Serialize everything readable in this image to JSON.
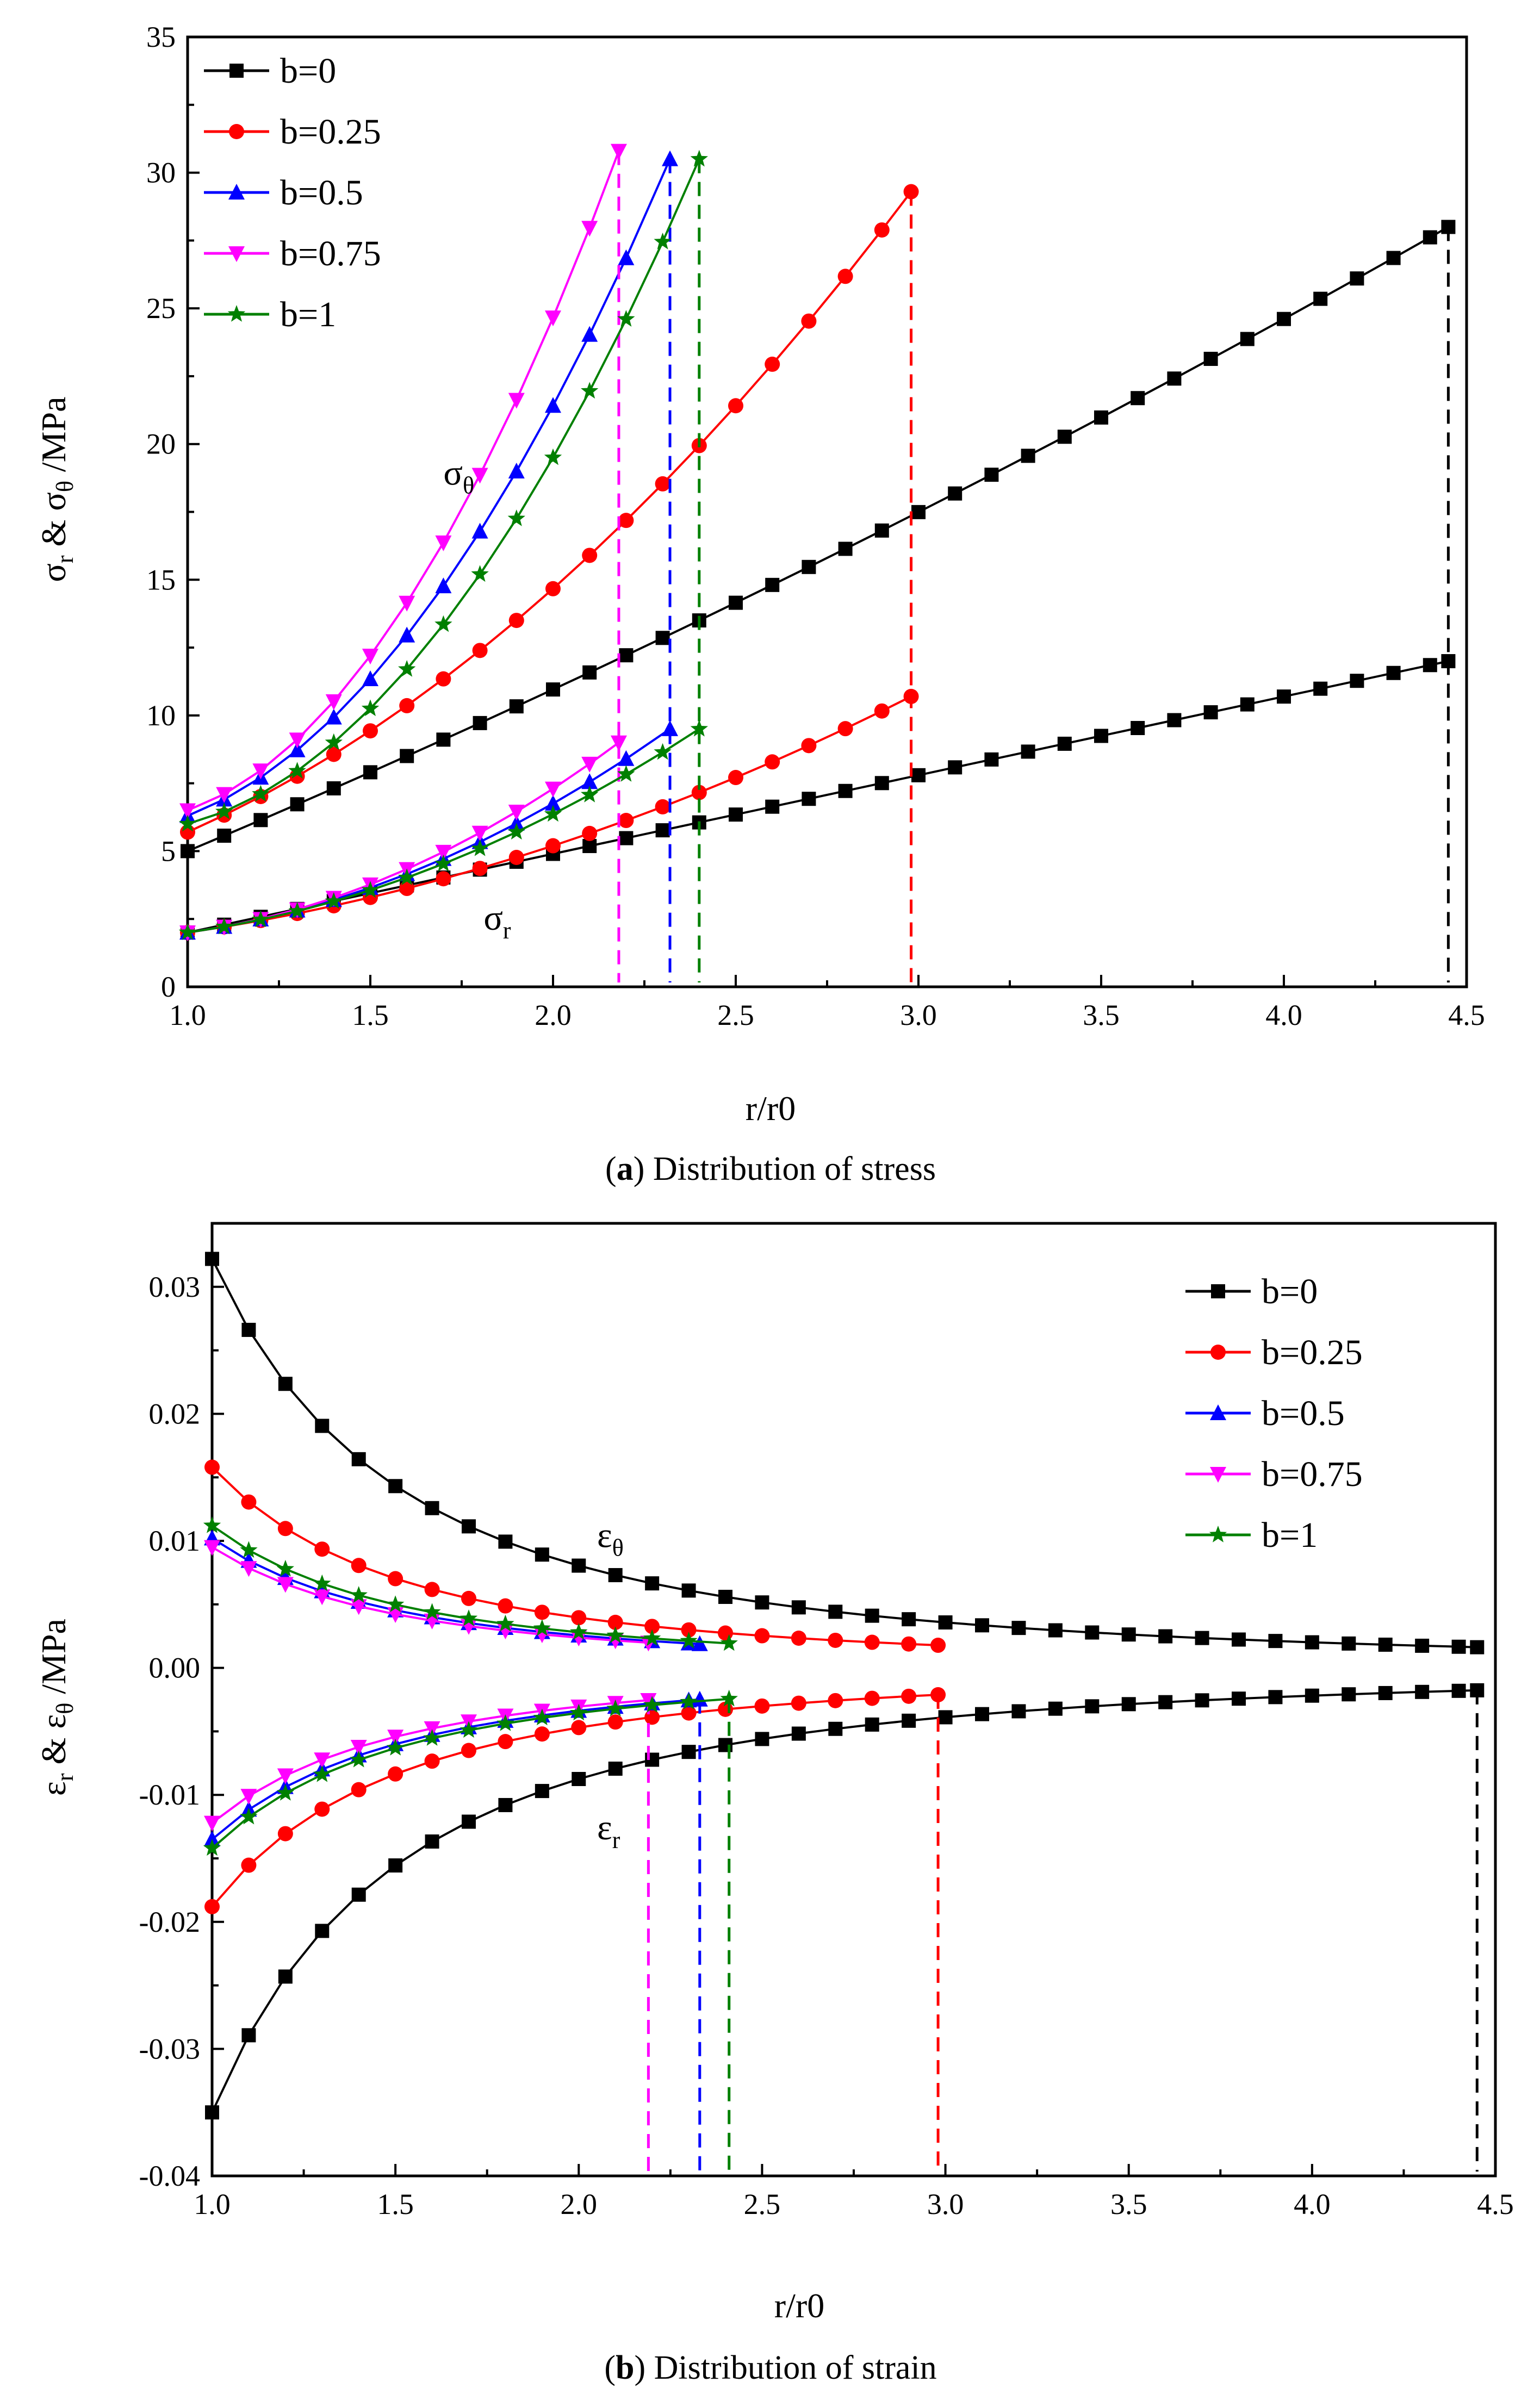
{
  "chart_data": [
    {
      "panel": "a",
      "type": "line",
      "caption_prefix": "(",
      "caption_letter": "a",
      "caption_rest": ") Distribution of stress",
      "xlabel": "r/r0",
      "ylabel": {
        "p1": "σ",
        "s1": "r",
        "p2": " & σ",
        "s2": "θ",
        "p3": " /MPa"
      },
      "xlim": [
        1.0,
        4.5
      ],
      "ylim": [
        0,
        35
      ],
      "xticks": [
        1.0,
        1.5,
        2.0,
        2.5,
        3.0,
        3.5,
        4.0,
        4.5
      ],
      "xtick_labels": [
        "1.0",
        "1.5",
        "2.0",
        "2.5",
        "3.0",
        "3.5",
        "4.0",
        "4.5"
      ],
      "yticks": [
        0,
        5,
        10,
        15,
        20,
        25,
        30,
        35
      ],
      "ytick_labels": [
        "0",
        "5",
        "10",
        "15",
        "20",
        "25",
        "30",
        "35"
      ],
      "legend_position": "top-left",
      "annotations": [
        {
          "main": "σ",
          "sub": "θ",
          "x": 1.7,
          "y": 18.5
        },
        {
          "main": "σ",
          "sub": "r",
          "x": 1.81,
          "y": 2.1
        }
      ],
      "series": [
        {
          "name": "b=0",
          "color": "#000000",
          "marker": "square",
          "x_end": 4.45,
          "theta_start": 5.0,
          "theta_end": 28.0,
          "theta_curv": 0.3,
          "r_start": 2.0,
          "r_end": 12.0,
          "r_curv": 0.0
        },
        {
          "name": "b=0.25",
          "color": "#ff0000",
          "marker": "circle",
          "x_end": 2.98,
          "theta_start": 5.7,
          "theta_end": 29.3,
          "theta_curv": 1.0,
          "r_start": 2.0,
          "r_end": 10.7,
          "r_curv": 1.1
        },
        {
          "name": "b=0.5",
          "color": "#0000ff",
          "marker": "triangle-up",
          "x_end": 2.32,
          "theta_start": 6.3,
          "theta_end": 30.5,
          "theta_curv": 1.45,
          "r_start": 2.0,
          "r_end": 9.5,
          "r_curv": 1.35
        },
        {
          "name": "b=0.75",
          "color": "#ff00ff",
          "marker": "triangle-down",
          "x_end": 2.18,
          "theta_start": 6.5,
          "theta_end": 30.8,
          "theta_curv": 1.55,
          "r_start": 2.0,
          "r_end": 9.0,
          "r_curv": 1.4
        },
        {
          "name": "b=1",
          "color": "#008000",
          "marker": "star",
          "x_end": 2.4,
          "theta_start": 6.0,
          "theta_end": 30.5,
          "theta_curv": 1.6,
          "r_start": 2.0,
          "r_end": 9.5,
          "r_curv": 1.3
        }
      ]
    },
    {
      "panel": "b",
      "type": "line",
      "caption_prefix": "(",
      "caption_letter": "b",
      "caption_rest": ") Distribution of strain",
      "xlabel": "r/r0",
      "ylabel": {
        "p1": "ε",
        "s1": "r",
        "p2": " & ε",
        "s2": "θ",
        "p3": " /MPa"
      },
      "xlim": [
        1.0,
        4.5
      ],
      "ylim": [
        -0.04,
        0.035
      ],
      "xticks": [
        1.0,
        1.5,
        2.0,
        2.5,
        3.0,
        3.5,
        4.0,
        4.5
      ],
      "xtick_labels": [
        "1.0",
        "1.5",
        "2.0",
        "2.5",
        "3.0",
        "3.5",
        "4.0",
        "4.5"
      ],
      "yticks": [
        -0.04,
        -0.03,
        -0.02,
        -0.01,
        0.0,
        0.01,
        0.02,
        0.03
      ],
      "ytick_labels": [
        "-0.04",
        "-0.03",
        "-0.02",
        "-0.01",
        "0.00",
        "0.01",
        "0.02",
        "0.03"
      ],
      "legend_position": "top-right",
      "annotations": [
        {
          "main": "ε",
          "sub": "θ",
          "x": 2.05,
          "y": 0.0095
        },
        {
          "main": "ε",
          "sub": "r",
          "x": 2.05,
          "y": -0.0135
        }
      ],
      "series": [
        {
          "name": "b=0",
          "color": "#000000",
          "marker": "square",
          "x_end": 4.45,
          "theta_amp": 0.0322,
          "r_amp": -0.035
        },
        {
          "name": "b=0.25",
          "color": "#ff0000",
          "marker": "circle",
          "x_end": 2.98,
          "theta_amp": 0.0158,
          "r_amp": -0.0188
        },
        {
          "name": "b=0.5",
          "color": "#0000ff",
          "marker": "triangle-up",
          "x_end": 2.33,
          "theta_amp": 0.0102,
          "r_amp": -0.0135
        },
        {
          "name": "b=0.75",
          "color": "#ff00ff",
          "marker": "triangle-down",
          "x_end": 2.19,
          "theta_amp": 0.0095,
          "r_amp": -0.0122
        },
        {
          "name": "b=1",
          "color": "#008000",
          "marker": "star",
          "x_end": 2.41,
          "theta_amp": 0.0112,
          "r_amp": -0.0142
        }
      ]
    }
  ]
}
